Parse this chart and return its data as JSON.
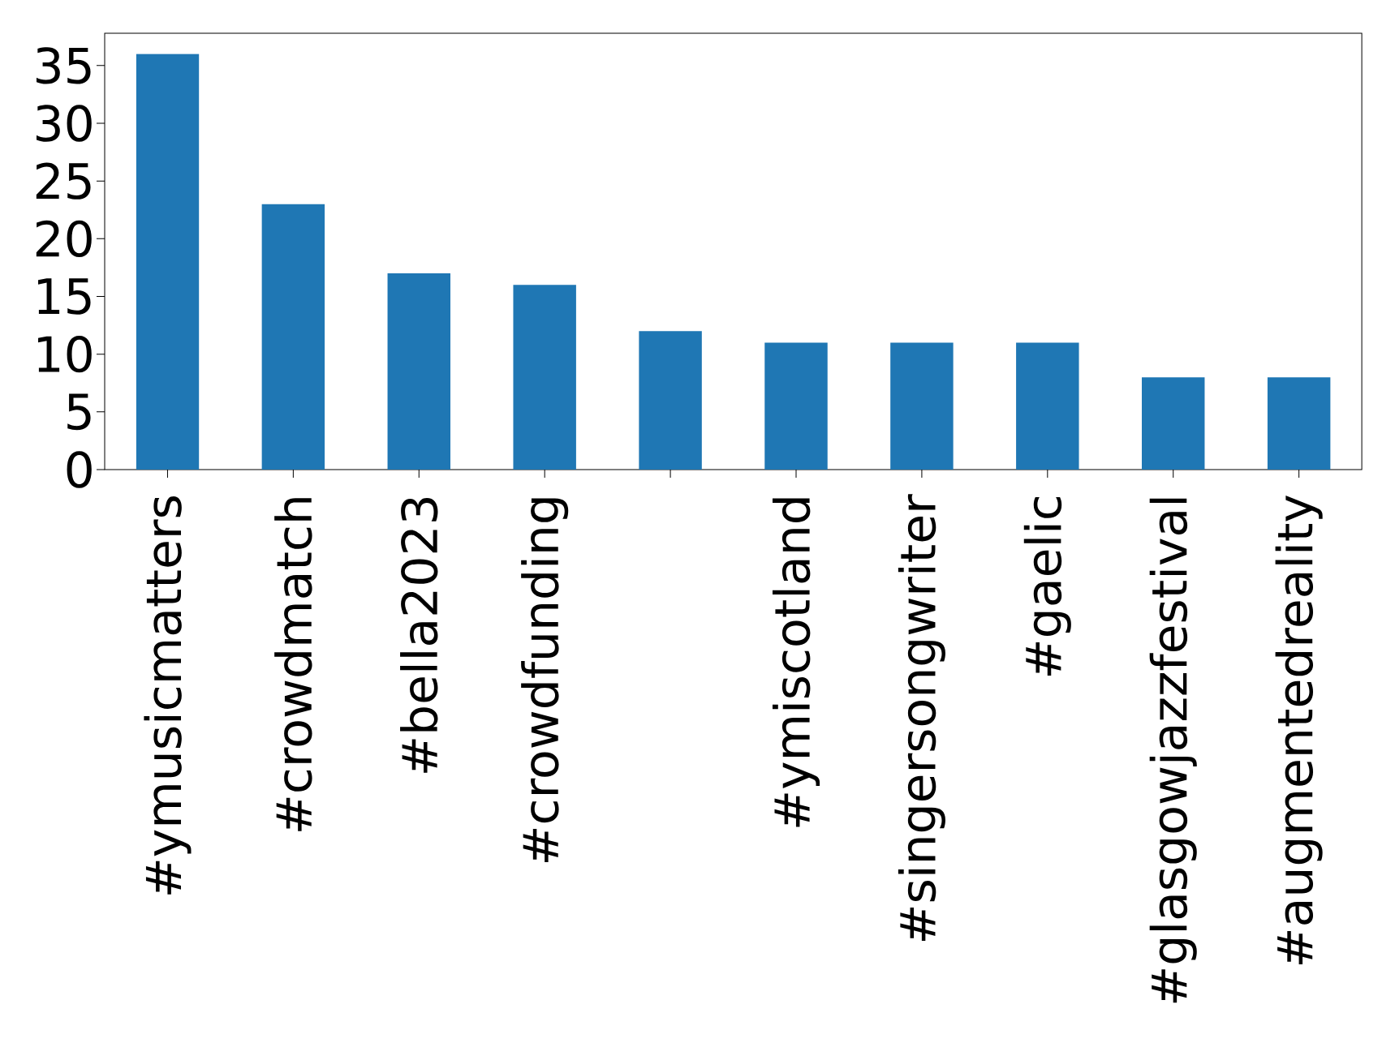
{
  "chart_data": {
    "type": "bar",
    "categories": [
      "#ymusicmatters",
      "#crowdmatch",
      "#bella2023",
      "#crowdfunding",
      null,
      "#ymiscotland",
      "#singersongwriter",
      "#gaelic",
      "#glasgowjazzfestival",
      "#augmentedreality"
    ],
    "values": [
      36,
      23,
      17,
      16,
      12,
      11,
      11,
      11,
      8,
      8
    ],
    "color": "#1f77b4",
    "ylim": [
      0,
      37.8
    ],
    "yticks": [
      0,
      5,
      10,
      15,
      20,
      25,
      30,
      35
    ]
  }
}
